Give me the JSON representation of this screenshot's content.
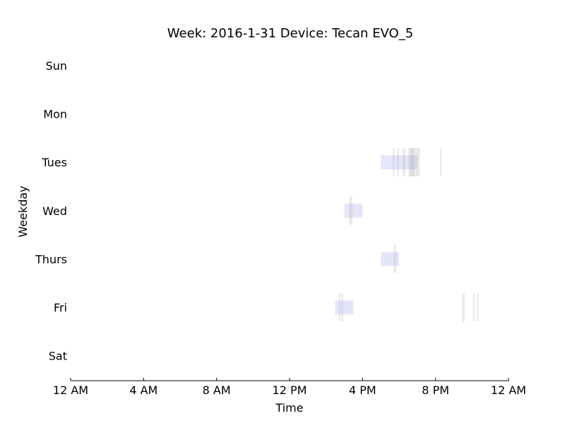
{
  "chart_data": {
    "type": "timeline",
    "title": "Week: 2016-1-31  Device: Tecan EVO_5",
    "xlabel": "Time",
    "ylabel": "Weekday",
    "xlim": [
      0,
      24
    ],
    "x_ticks": [
      {
        "value": 0,
        "label": "12 AM"
      },
      {
        "value": 4,
        "label": "4 AM"
      },
      {
        "value": 8,
        "label": "8 AM"
      },
      {
        "value": 12,
        "label": "12 PM"
      },
      {
        "value": 16,
        "label": "4 PM"
      },
      {
        "value": 20,
        "label": "8 PM"
      },
      {
        "value": 24,
        "label": "12 AM"
      }
    ],
    "days": [
      "Sun",
      "Mon",
      "Tues",
      "Wed",
      "Thurs",
      "Fri",
      "Sat"
    ],
    "grid": false,
    "colors": {
      "booking": "#e2e2fa",
      "usage": "#e8e8e8"
    },
    "bookings": [
      {
        "day": "Tues",
        "start": 17.0,
        "end": 19.0
      },
      {
        "day": "Wed",
        "start": 15.0,
        "end": 16.0
      },
      {
        "day": "Thurs",
        "start": 17.0,
        "end": 18.0
      },
      {
        "day": "Fri",
        "start": 14.5,
        "end": 15.5
      }
    ],
    "usage": [
      {
        "day": "Tues",
        "start": 17.65,
        "end": 17.75
      },
      {
        "day": "Tues",
        "start": 17.9,
        "end": 18.0
      },
      {
        "day": "Tues",
        "start": 18.2,
        "end": 18.35
      },
      {
        "day": "Tues",
        "start": 18.5,
        "end": 19.05
      },
      {
        "day": "Tues",
        "start": 18.6,
        "end": 18.85
      },
      {
        "day": "Tues",
        "start": 19.0,
        "end": 19.15
      },
      {
        "day": "Tues",
        "start": 20.25,
        "end": 20.35
      },
      {
        "day": "Wed",
        "start": 15.25,
        "end": 15.45
      },
      {
        "day": "Thurs",
        "start": 17.7,
        "end": 17.85
      },
      {
        "day": "Fri",
        "start": 14.7,
        "end": 14.8
      },
      {
        "day": "Fri",
        "start": 14.85,
        "end": 14.95
      },
      {
        "day": "Fri",
        "start": 21.45,
        "end": 21.6
      },
      {
        "day": "Fri",
        "start": 22.05,
        "end": 22.15
      },
      {
        "day": "Fri",
        "start": 22.25,
        "end": 22.35
      }
    ]
  }
}
